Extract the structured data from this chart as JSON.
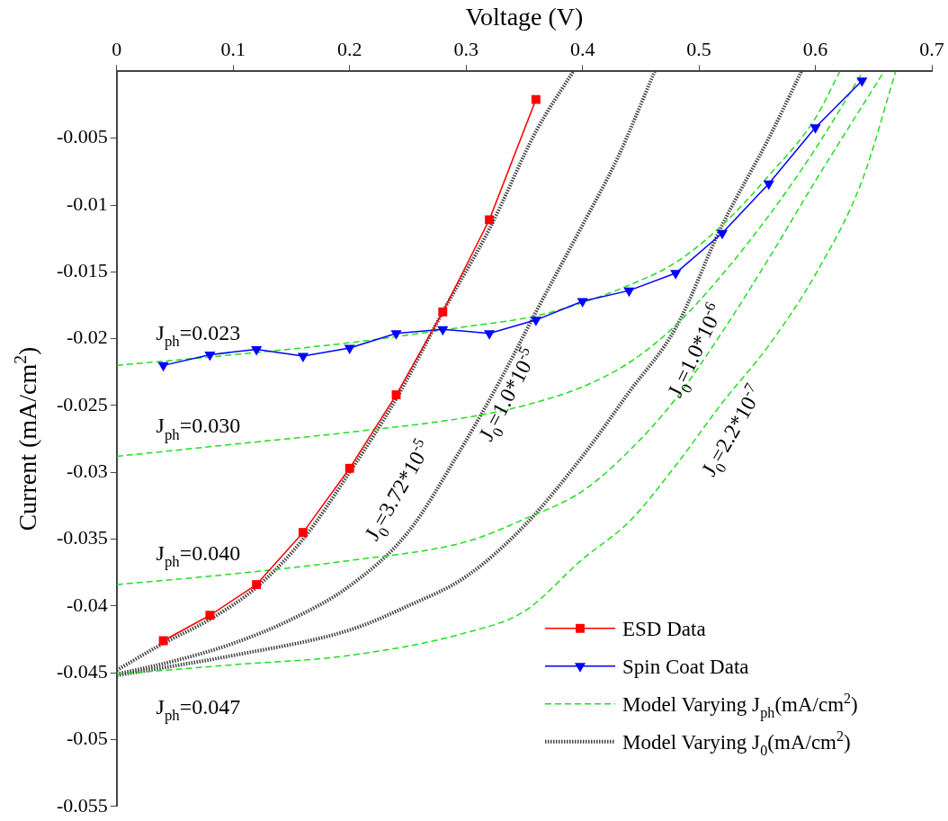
{
  "chart_data": {
    "type": "line",
    "xlabel": "Voltage (V)",
    "ylabel": "Current (mA/cm$^{2}$)",
    "xlim": [
      0,
      0.7
    ],
    "xticks": [
      0,
      0.1,
      0.2,
      0.3,
      0.4,
      0.5,
      0.6,
      0.7
    ],
    "ylim": [
      -0.055,
      0
    ],
    "yticks": [
      -0.055,
      -0.05,
      -0.045,
      -0.04,
      -0.035,
      -0.03,
      -0.025,
      -0.02,
      -0.015,
      -0.01,
      -0.005
    ],
    "legend": "bottom right",
    "series": [
      {
        "name": "ESD Data",
        "color": "#ff0000",
        "marker": "square",
        "line_style": "solid",
        "x": [
          0.04,
          0.08,
          0.12,
          0.16,
          0.2,
          0.24,
          0.28,
          0.32,
          0.36
        ],
        "values": [
          -0.0426,
          -0.0407,
          -0.0384,
          -0.0345,
          -0.0297,
          -0.0242,
          -0.018,
          -0.0111,
          -0.0021
        ]
      },
      {
        "name": "Spin Coat Data",
        "color": "#0000ff",
        "marker": "triangle",
        "line_style": "solid",
        "x": [
          0.04,
          0.08,
          0.12,
          0.16,
          0.2,
          0.24,
          0.28,
          0.32,
          0.36,
          0.4,
          0.44,
          0.48,
          0.52,
          0.56,
          0.6,
          0.64
        ],
        "values": [
          -0.022,
          -0.0212,
          -0.0208,
          -0.0213,
          -0.0207,
          -0.0196,
          -0.0193,
          -0.0196,
          -0.0186,
          -0.0172,
          -0.0164,
          -0.0151,
          -0.0121,
          -0.0084,
          -0.0042,
          -0.0007
        ]
      },
      {
        "name": "Model Varying J$_{ph}$(mA/cm$^{2}$)",
        "color": "#22dd22",
        "marker": "none",
        "line_style": "dashed",
        "x": [
          0,
          0.1,
          0.2,
          0.3,
          0.36,
          0.4,
          0.44,
          0.48,
          0.52,
          0.56,
          0.6,
          0.621
        ],
        "values": [
          -0.022,
          -0.0212,
          -0.0203,
          -0.0191,
          -0.0183,
          -0.0173,
          -0.016,
          -0.0143,
          -0.0115,
          -0.0078,
          -0.0035,
          0
        ]
      },
      {
        "color": "#22dd22",
        "marker": "none",
        "line_style": "dashed",
        "x": [
          0,
          0.1,
          0.2,
          0.3,
          0.35,
          0.4,
          0.44,
          0.48,
          0.52,
          0.56,
          0.6,
          0.641
        ],
        "values": [
          -0.0288,
          -0.0279,
          -0.027,
          -0.0259,
          -0.025,
          -0.0236,
          -0.0218,
          -0.019,
          -0.0152,
          -0.0108,
          -0.0058,
          0
        ]
      },
      {
        "color": "#22dd22",
        "marker": "none",
        "line_style": "dashed",
        "x": [
          0,
          0.1,
          0.2,
          0.3,
          0.35,
          0.4,
          0.44,
          0.48,
          0.52,
          0.56,
          0.6,
          0.659
        ],
        "values": [
          -0.0384,
          -0.0376,
          -0.0366,
          -0.0352,
          -0.0335,
          -0.0314,
          -0.0284,
          -0.0245,
          -0.0195,
          -0.014,
          -0.0082,
          0
        ]
      },
      {
        "color": "#22dd22",
        "marker": "none",
        "line_style": "dashed",
        "x": [
          0,
          0.1,
          0.2,
          0.3,
          0.35,
          0.4,
          0.44,
          0.48,
          0.52,
          0.56,
          0.6,
          0.64,
          0.669
        ],
        "values": [
          -0.0451,
          -0.0444,
          -0.0437,
          -0.042,
          -0.0404,
          -0.0365,
          -0.0337,
          -0.0295,
          -0.0248,
          -0.0205,
          -0.0152,
          -0.0082,
          0
        ]
      },
      {
        "name": "Model Varying J$_{0}$(mA/cm$^{2}$)",
        "color": "#444444",
        "marker": "none",
        "line_style": "dotted",
        "x": [
          0,
          0.04,
          0.08,
          0.12,
          0.16,
          0.2,
          0.24,
          0.28,
          0.32,
          0.36,
          0.392
        ],
        "values": [
          -0.0448,
          -0.0428,
          -0.041,
          -0.0386,
          -0.035,
          -0.03,
          -0.0245,
          -0.018,
          -0.0118,
          -0.0045,
          0
        ]
      },
      {
        "color": "#444444",
        "marker": "none",
        "line_style": "dotted",
        "x": [
          0,
          0.05,
          0.1,
          0.15,
          0.2,
          0.25,
          0.294,
          0.33,
          0.36,
          0.4,
          0.43,
          0.462
        ],
        "values": [
          -0.0451,
          -0.0441,
          -0.0428,
          -0.041,
          -0.0385,
          -0.0345,
          -0.0285,
          -0.023,
          -0.018,
          -0.0115,
          -0.0065,
          0
        ]
      },
      {
        "color": "#444444",
        "marker": "none",
        "line_style": "dotted",
        "x": [
          0,
          0.1,
          0.2,
          0.25,
          0.3,
          0.35,
          0.4,
          0.44,
          0.48,
          0.52,
          0.56,
          0.588
        ],
        "values": [
          -0.0452,
          -0.0437,
          -0.0418,
          -0.04,
          -0.0378,
          -0.034,
          -0.0288,
          -0.024,
          -0.0192,
          -0.0115,
          -0.005,
          0
        ]
      }
    ],
    "annotations": [
      "J$_{ph}$=0.023",
      "J$_{ph}$=0.030",
      "J$_{ph}$=0.040",
      "J$_{ph}$=0.047",
      "J$_{0}$=3.72*10$^{-5}$",
      "J$_{0}$=1.0*10$^{-5}$",
      "J$_{0}$=1.0*10$^{-6}$",
      "J$_{0}$=2.2*10$^{-7}$"
    ]
  }
}
